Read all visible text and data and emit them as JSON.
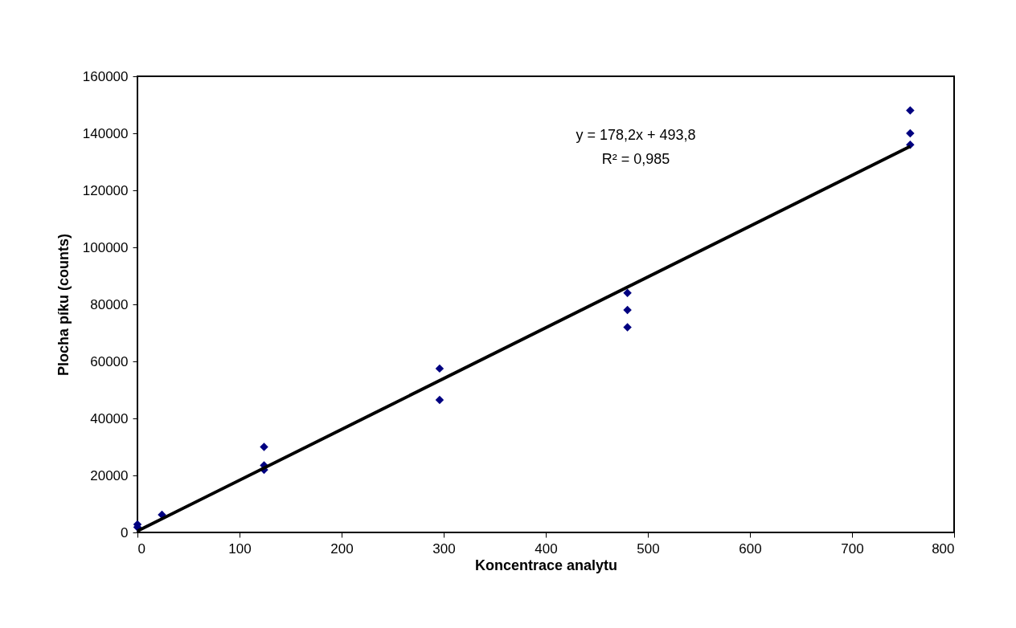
{
  "chart_data": {
    "type": "scatter",
    "xlabel": "Koncentrace analytu",
    "ylabel": "Plocha píku (counts)",
    "xlim": [
      0,
      800
    ],
    "xticks": [
      0,
      100,
      200,
      300,
      400,
      500,
      600,
      700,
      800
    ],
    "ylim": [
      0,
      160000
    ],
    "yticks": [
      0,
      20000,
      40000,
      60000,
      80000,
      100000,
      120000,
      140000,
      160000
    ],
    "grid": false,
    "marker": "diamond",
    "annotations": [
      "y = 178,2x + 493,8",
      "R² = 0,985"
    ],
    "series": [
      {
        "color": "#000080",
        "x": [
          0,
          0,
          24,
          124,
          124,
          124,
          296,
          296,
          480,
          480,
          480,
          757,
          757,
          757
        ],
        "values": [
          2800,
          1800,
          6200,
          30000,
          23500,
          22000,
          57500,
          46500,
          84000,
          78000,
          72000,
          148000,
          140000,
          136000
        ]
      },
      {
        "type": "line",
        "color": "#000000",
        "line_style": "solid",
        "marker": "none",
        "x": [
          0,
          757
        ],
        "values": [
          500,
          135400
        ]
      }
    ]
  }
}
